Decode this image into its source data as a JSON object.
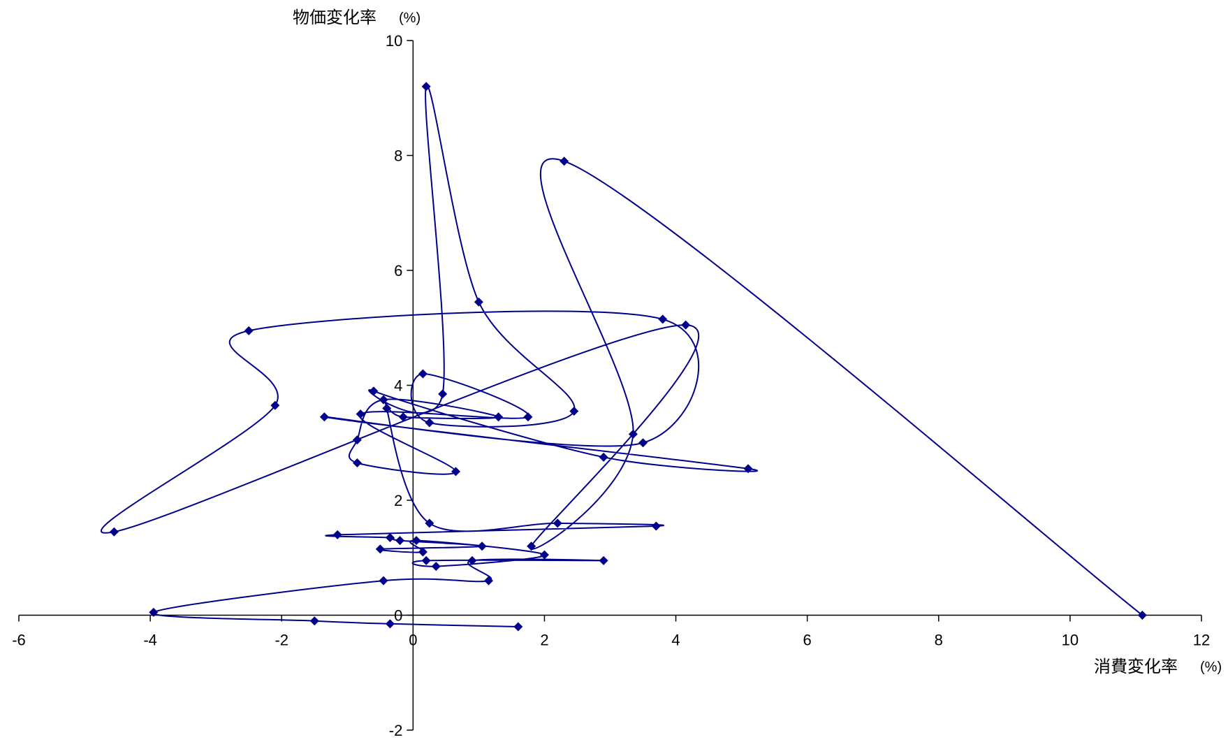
{
  "chart_data": {
    "type": "scatter",
    "connected": true,
    "smooth": true,
    "marker": "diamond",
    "xlabel": "消費変化率",
    "xlabel_unit": "(%)",
    "ylabel": "物価変化率",
    "ylabel_unit": "(%)",
    "xlim": [
      -6,
      12
    ],
    "ylim": [
      -2,
      10
    ],
    "x_ticks": [
      -6,
      -4,
      -2,
      0,
      2,
      4,
      6,
      8,
      10,
      12
    ],
    "y_ticks": [
      -2,
      0,
      2,
      4,
      6,
      8,
      10
    ],
    "x_tick_labels": [
      "-6",
      "-4",
      "-2",
      "0",
      "2",
      "4",
      "6",
      "8",
      "10",
      "12"
    ],
    "y_tick_labels": [
      "-2",
      "0",
      "2",
      "4",
      "6",
      "8",
      "10"
    ],
    "grid": false,
    "legend": "none",
    "colors": {
      "series": "#00008B",
      "axis": "#000000"
    },
    "points": [
      {
        "x": 11.1,
        "y": 0.0
      },
      {
        "x": 2.3,
        "y": 7.9
      },
      {
        "x": 3.35,
        "y": 3.15
      },
      {
        "x": 1.8,
        "y": 1.2
      },
      {
        "x": 4.15,
        "y": 5.05
      },
      {
        "x": -4.55,
        "y": 1.45
      },
      {
        "x": -2.1,
        "y": 3.65
      },
      {
        "x": -2.5,
        "y": 4.95
      },
      {
        "x": 3.8,
        "y": 5.15
      },
      {
        "x": 3.5,
        "y": 3.0
      },
      {
        "x": -1.35,
        "y": 3.45
      },
      {
        "x": 5.1,
        "y": 2.55
      },
      {
        "x": 2.9,
        "y": 2.75
      },
      {
        "x": -0.6,
        "y": 3.9
      },
      {
        "x": 0.45,
        "y": 3.85
      },
      {
        "x": 0.2,
        "y": 9.2
      },
      {
        "x": 1.0,
        "y": 5.45
      },
      {
        "x": 2.45,
        "y": 3.55
      },
      {
        "x": 0.25,
        "y": 3.35
      },
      {
        "x": 0.15,
        "y": 4.2
      },
      {
        "x": 1.75,
        "y": 3.45
      },
      {
        "x": -0.8,
        "y": 3.5
      },
      {
        "x": 0.65,
        "y": 2.5
      },
      {
        "x": -0.85,
        "y": 2.65
      },
      {
        "x": -0.85,
        "y": 3.05
      },
      {
        "x": -0.45,
        "y": 3.75
      },
      {
        "x": 1.3,
        "y": 3.45
      },
      {
        "x": -0.15,
        "y": 3.45
      },
      {
        "x": -0.4,
        "y": 3.6
      },
      {
        "x": 0.25,
        "y": 1.6
      },
      {
        "x": 2.2,
        "y": 1.6
      },
      {
        "x": 3.7,
        "y": 1.55
      },
      {
        "x": -1.15,
        "y": 1.4
      },
      {
        "x": -0.35,
        "y": 1.35
      },
      {
        "x": -0.2,
        "y": 1.3
      },
      {
        "x": 1.05,
        "y": 1.2
      },
      {
        "x": -0.5,
        "y": 1.15
      },
      {
        "x": 0.15,
        "y": 1.1
      },
      {
        "x": 0.05,
        "y": 1.3
      },
      {
        "x": 2.0,
        "y": 1.05
      },
      {
        "x": 0.35,
        "y": 0.85
      },
      {
        "x": 0.2,
        "y": 0.95
      },
      {
        "x": 2.9,
        "y": 0.95
      },
      {
        "x": 0.9,
        "y": 0.95
      },
      {
        "x": 1.15,
        "y": 0.6
      },
      {
        "x": -0.45,
        "y": 0.6
      },
      {
        "x": -3.95,
        "y": 0.05
      },
      {
        "x": -1.5,
        "y": -0.1
      },
      {
        "x": -0.35,
        "y": -0.15
      },
      {
        "x": 1.6,
        "y": -0.2
      }
    ]
  }
}
